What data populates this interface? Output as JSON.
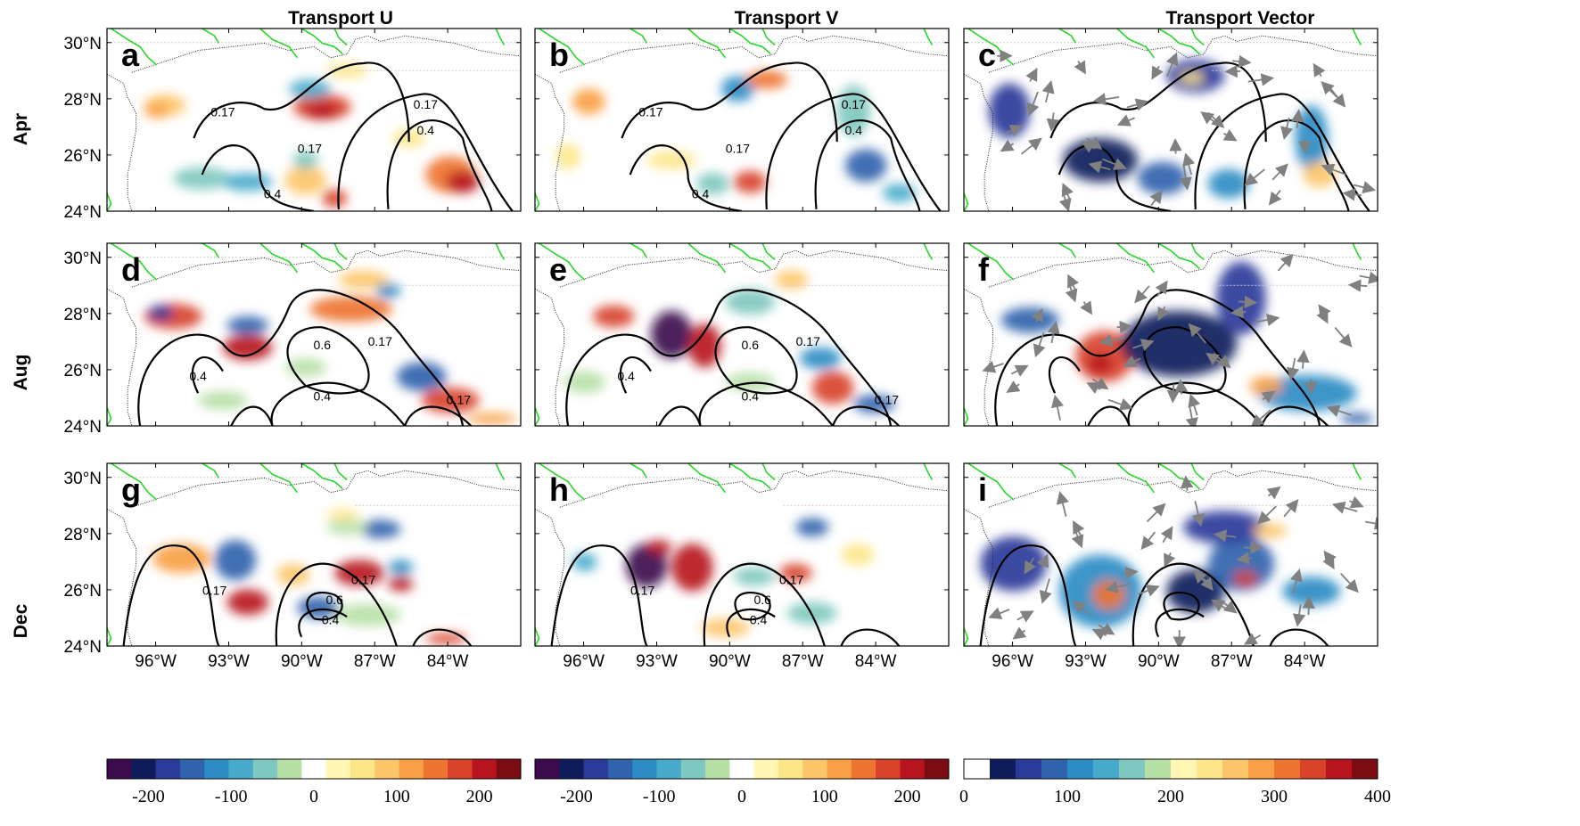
{
  "figure": {
    "column_titles": [
      "Transport U",
      "Transport V",
      "Transport Vector"
    ],
    "row_labels": [
      "Apr",
      "Aug",
      "Dec"
    ],
    "panel_letters": [
      [
        "a",
        "b",
        "c"
      ],
      [
        "d",
        "e",
        "f"
      ],
      [
        "g",
        "h",
        "i"
      ]
    ]
  },
  "chart_data": {
    "type": "heatmap",
    "x_ticks": [
      "96°W",
      "93°W",
      "90°W",
      "87°W",
      "84°W"
    ],
    "x_tick_values": [
      -96,
      -93,
      -90,
      -87,
      -84
    ],
    "y_ticks": [
      "30°N",
      "28°N",
      "26°N",
      "24°N"
    ],
    "y_tick_values": [
      30,
      28,
      26,
      24
    ],
    "xlim": [
      -98,
      -81
    ],
    "ylim": [
      24,
      30.5
    ],
    "contour_levels": [
      "0.17",
      "0.4",
      "0.6"
    ],
    "colorbars": [
      {
        "ticks": [
          "-200",
          "-100",
          "0",
          "100",
          "200"
        ],
        "tick_values": [
          -200,
          -100,
          0,
          100,
          200
        ],
        "range": [
          -250,
          250
        ],
        "colors": [
          "#3d0a4e",
          "#0f1c5c",
          "#2a3a9a",
          "#2f63ad",
          "#2c8cc4",
          "#47aacb",
          "#7fc8bf",
          "#b7e0a6",
          "#ffffff",
          "#fff6b3",
          "#fde68a",
          "#fdc56a",
          "#f99f45",
          "#ee7432",
          "#d8432a",
          "#b7141f",
          "#7d0b13"
        ]
      },
      {
        "ticks": [
          "-200",
          "-100",
          "0",
          "100",
          "200"
        ],
        "tick_values": [
          -200,
          -100,
          0,
          100,
          200
        ],
        "range": [
          -250,
          250
        ],
        "colors": [
          "#3d0a4e",
          "#0f1c5c",
          "#2a3a9a",
          "#2f63ad",
          "#2c8cc4",
          "#47aacb",
          "#7fc8bf",
          "#b7e0a6",
          "#ffffff",
          "#fff6b3",
          "#fde68a",
          "#fdc56a",
          "#f99f45",
          "#ee7432",
          "#d8432a",
          "#b7141f",
          "#7d0b13"
        ]
      },
      {
        "ticks": [
          "0",
          "100",
          "200",
          "300",
          "400"
        ],
        "tick_values": [
          0,
          100,
          200,
          300,
          400
        ],
        "range": [
          0,
          400
        ],
        "colors": [
          "#ffffff",
          "#0f1c5c",
          "#2a3a9a",
          "#2f63ad",
          "#2c8cc4",
          "#47aacb",
          "#7fc8bf",
          "#b7e0a6",
          "#fff6b3",
          "#fde68a",
          "#fdc56a",
          "#f99f45",
          "#ee7432",
          "#d8432a",
          "#b7141f",
          "#7d0b13"
        ]
      }
    ]
  },
  "colors": {
    "coastline": "#222222",
    "rivers": "#27d727",
    "contours": "#000000",
    "vectors": "#808080"
  }
}
